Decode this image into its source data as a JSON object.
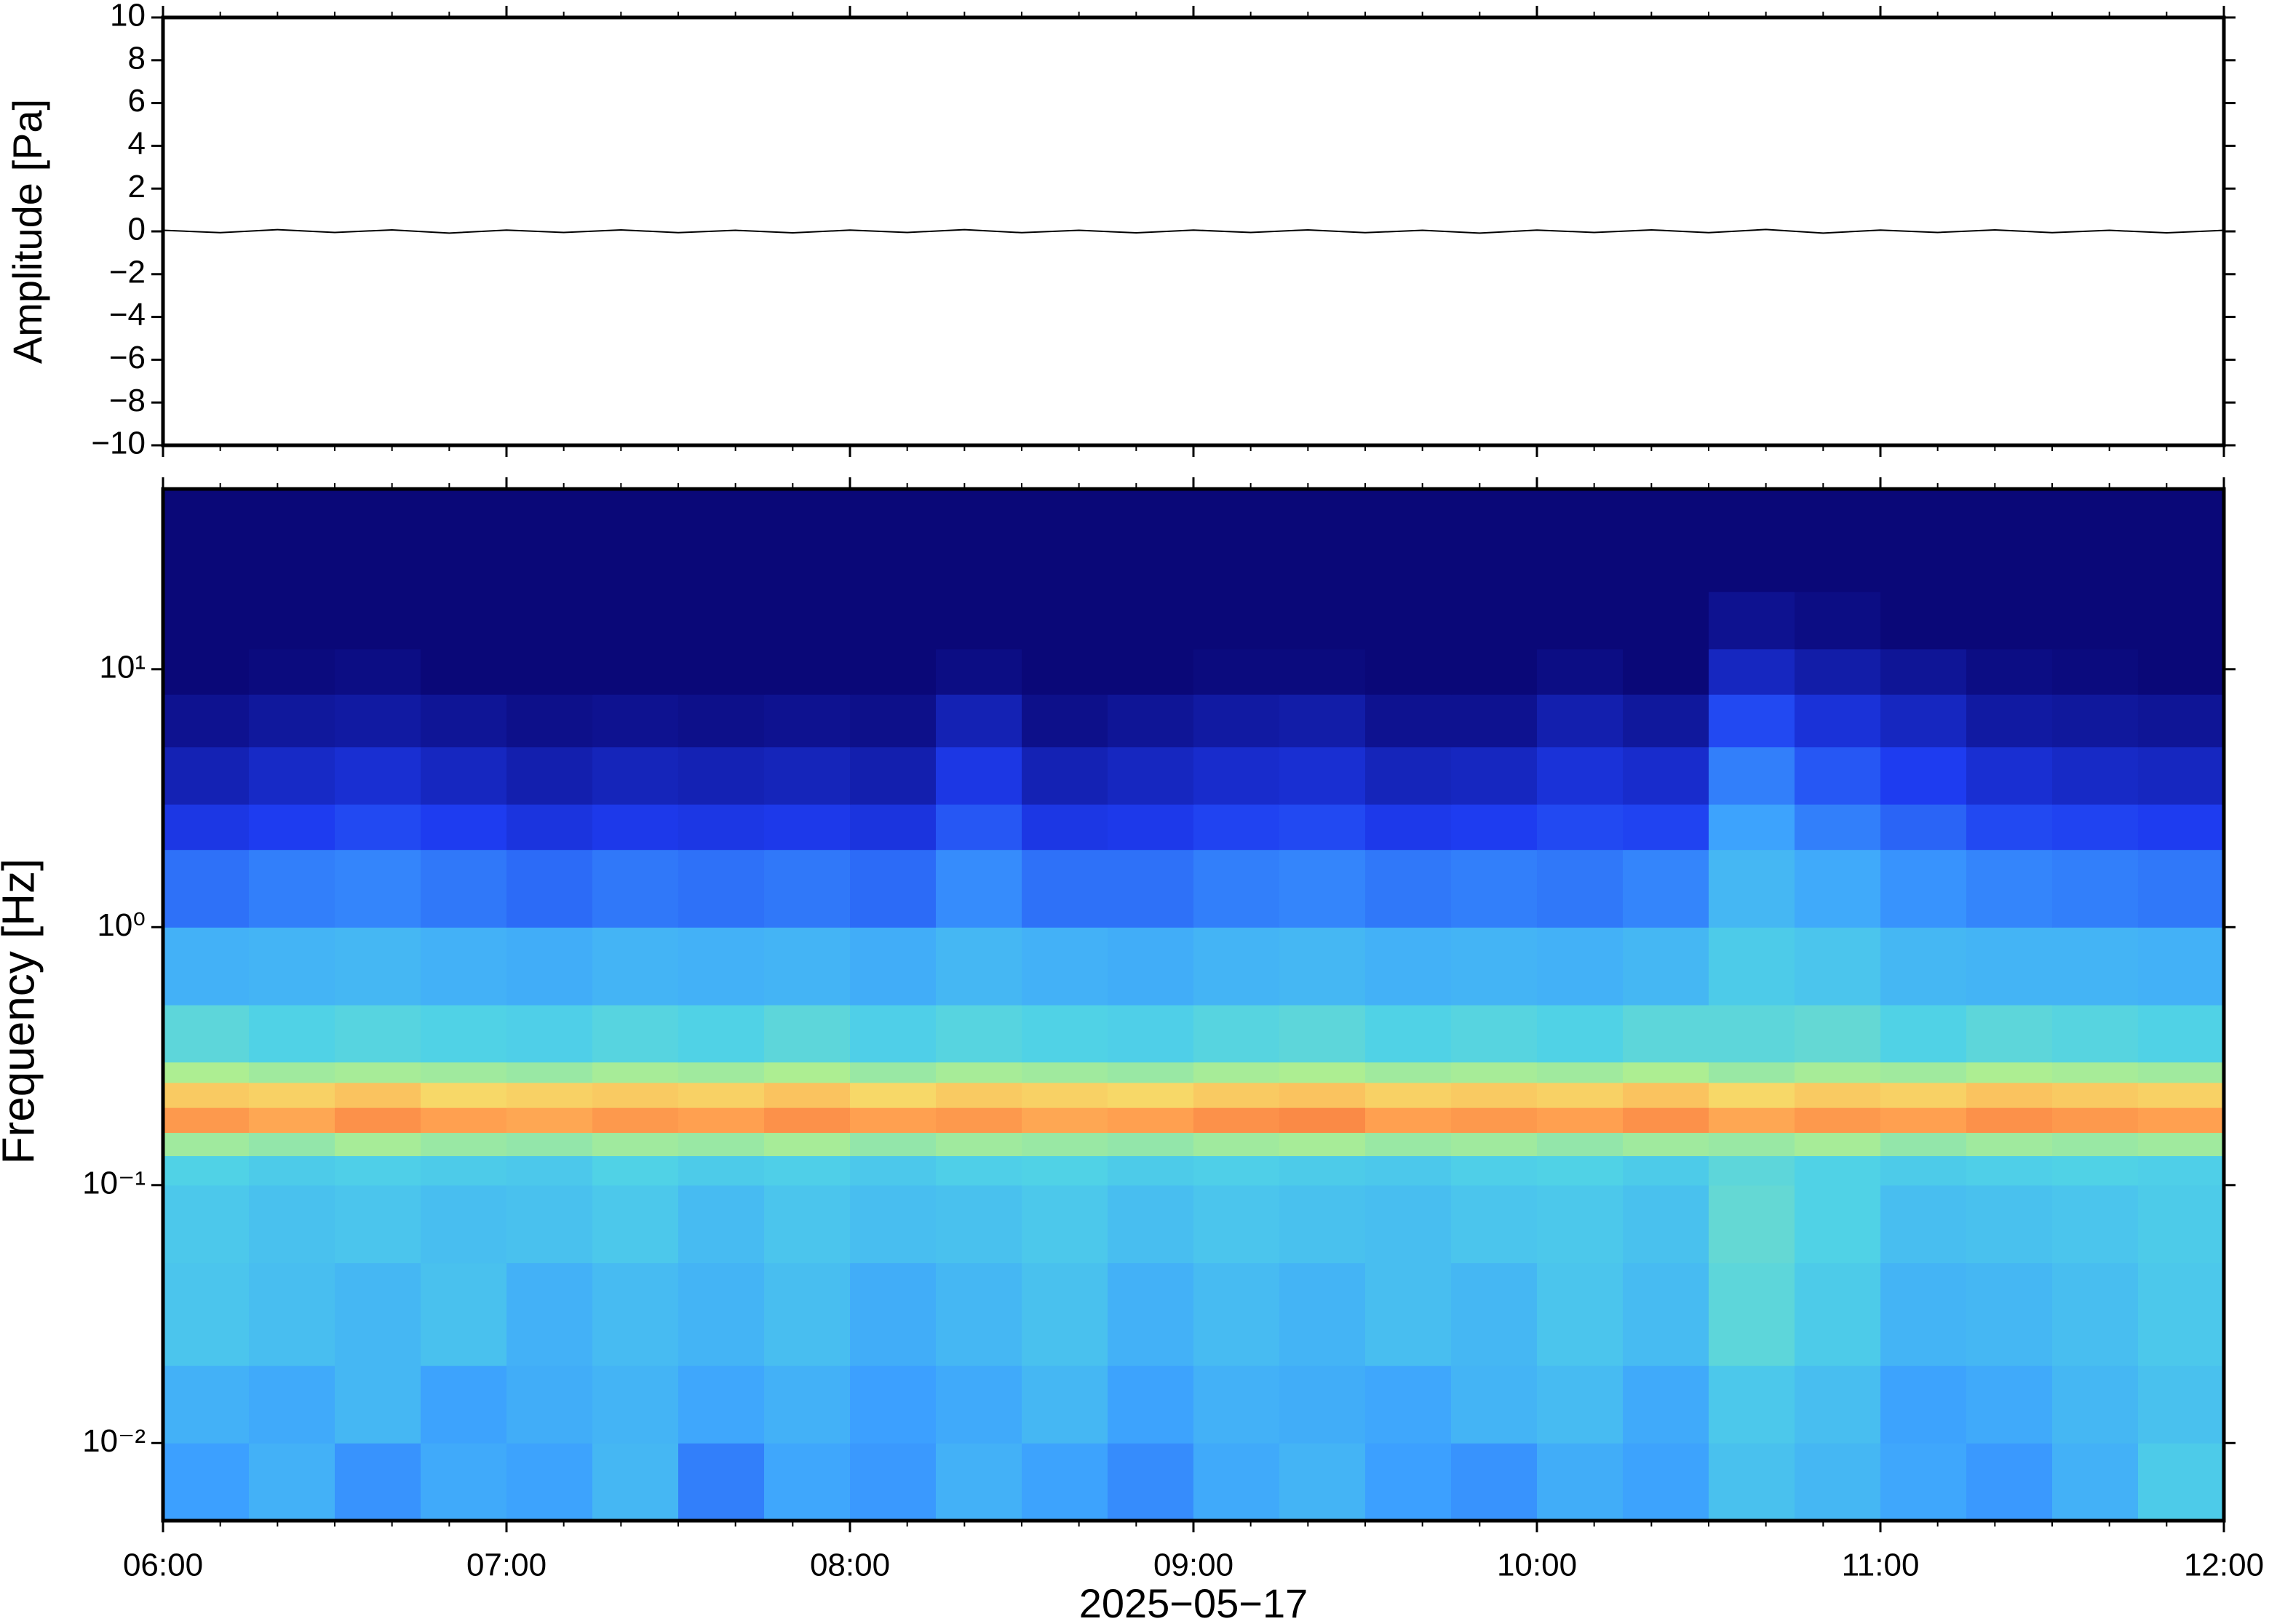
{
  "chart_data": [
    {
      "type": "line",
      "ylabel": "Amplitude [Pa]",
      "xlim": [
        "2025-05-17T06:00",
        "2025-05-17T12:00"
      ],
      "ylim": [
        -10,
        10
      ],
      "yticks": [
        {
          "value": -10,
          "label": "−10"
        },
        {
          "value": -8,
          "label": "−8"
        },
        {
          "value": -6,
          "label": "−6"
        },
        {
          "value": -4,
          "label": "−4"
        },
        {
          "value": -2,
          "label": "−2"
        },
        0,
        2,
        4,
        6,
        8,
        10
      ],
      "series": [
        {
          "color": "#000000",
          "x": [
            "2025-05-17T06:00",
            "2025-05-17T06:10",
            "2025-05-17T06:20",
            "2025-05-17T06:30",
            "2025-05-17T06:40",
            "2025-05-17T06:50",
            "2025-05-17T07:00",
            "2025-05-17T07:10",
            "2025-05-17T07:20",
            "2025-05-17T07:30",
            "2025-05-17T07:40",
            "2025-05-17T07:50",
            "2025-05-17T08:00",
            "2025-05-17T08:10",
            "2025-05-17T08:20",
            "2025-05-17T08:30",
            "2025-05-17T08:40",
            "2025-05-17T08:50",
            "2025-05-17T09:00",
            "2025-05-17T09:10",
            "2025-05-17T09:20",
            "2025-05-17T09:30",
            "2025-05-17T09:40",
            "2025-05-17T09:50",
            "2025-05-17T10:00",
            "2025-05-17T10:10",
            "2025-05-17T10:20",
            "2025-05-17T10:30",
            "2025-05-17T10:40",
            "2025-05-17T10:50",
            "2025-05-17T11:00",
            "2025-05-17T11:10",
            "2025-05-17T11:20",
            "2025-05-17T11:30",
            "2025-05-17T11:40",
            "2025-05-17T11:50",
            "2025-05-17T12:00"
          ],
          "values": [
            0.05,
            -0.06,
            0.08,
            -0.05,
            0.07,
            -0.08,
            0.06,
            -0.05,
            0.07,
            -0.06,
            0.05,
            -0.07,
            0.06,
            -0.05,
            0.08,
            -0.06,
            0.05,
            -0.07,
            0.06,
            -0.05,
            0.07,
            -0.06,
            0.05,
            -0.08,
            0.06,
            -0.05,
            0.07,
            -0.06,
            0.09,
            -0.08,
            0.06,
            -0.05,
            0.07,
            -0.06,
            0.05,
            -0.07,
            0.05
          ]
        }
      ]
    },
    {
      "type": "heatmap",
      "xlabel": "2025−05−17",
      "ylabel": "Frequency [Hz]",
      "xlim": [
        "2025-05-17T06:00",
        "2025-05-17T12:00"
      ],
      "xticks": [
        {
          "value": "2025-05-17T06:00",
          "label": "06:00"
        },
        {
          "value": "2025-05-17T07:00",
          "label": "07:00"
        },
        {
          "value": "2025-05-17T08:00",
          "label": "08:00"
        },
        {
          "value": "2025-05-17T09:00",
          "label": "09:00"
        },
        {
          "value": "2025-05-17T10:00",
          "label": "10:00"
        },
        {
          "value": "2025-05-17T11:00",
          "label": "11:00"
        },
        {
          "value": "2025-05-17T12:00",
          "label": "12:00"
        }
      ],
      "xminorticks": [
        "2025-05-17T06:10",
        "2025-05-17T06:20",
        "2025-05-17T06:30",
        "2025-05-17T06:40",
        "2025-05-17T06:50",
        "2025-05-17T07:10",
        "2025-05-17T07:20",
        "2025-05-17T07:30",
        "2025-05-17T07:40",
        "2025-05-17T07:50",
        "2025-05-17T08:10",
        "2025-05-17T08:20",
        "2025-05-17T08:30",
        "2025-05-17T08:40",
        "2025-05-17T08:50",
        "2025-05-17T09:10",
        "2025-05-17T09:20",
        "2025-05-17T09:30",
        "2025-05-17T09:40",
        "2025-05-17T09:50",
        "2025-05-17T10:10",
        "2025-05-17T10:20",
        "2025-05-17T10:30",
        "2025-05-17T10:40",
        "2025-05-17T10:50",
        "2025-05-17T11:10",
        "2025-05-17T11:20",
        "2025-05-17T11:30",
        "2025-05-17T11:40",
        "2025-05-17T11:50"
      ],
      "ylim": [
        0.005,
        50
      ],
      "log_y": true,
      "yticks": [
        {
          "value": 0.01,
          "label": "10⁻²"
        },
        {
          "value": 0.1,
          "label": "10⁻¹"
        },
        {
          "value": 1,
          "label": "10⁰"
        },
        {
          "value": 10,
          "label": "10¹"
        }
      ],
      "x_edges": [
        "2025-05-17T06:00",
        "2025-05-17T06:15",
        "2025-05-17T06:30",
        "2025-05-17T06:45",
        "2025-05-17T07:00",
        "2025-05-17T07:15",
        "2025-05-17T07:30",
        "2025-05-17T07:45",
        "2025-05-17T08:00",
        "2025-05-17T08:15",
        "2025-05-17T08:30",
        "2025-05-17T08:45",
        "2025-05-17T09:00",
        "2025-05-17T09:15",
        "2025-05-17T09:30",
        "2025-05-17T09:45",
        "2025-05-17T10:00",
        "2025-05-17T10:15",
        "2025-05-17T10:30",
        "2025-05-17T10:45",
        "2025-05-17T11:00",
        "2025-05-17T11:15",
        "2025-05-17T11:30",
        "2025-05-17T11:45",
        "2025-05-17T12:00"
      ],
      "y_edges": [
        0.005,
        0.01,
        0.02,
        0.05,
        0.1,
        0.13,
        0.16,
        0.2,
        0.25,
        0.3,
        0.5,
        1,
        2,
        3,
        5,
        8,
        12,
        20,
        50
      ],
      "colorscale": [
        [
          0,
          "#0a0878"
        ],
        [
          0.2,
          "#1e3cf0"
        ],
        [
          0.35,
          "#3ca0ff"
        ],
        [
          0.5,
          "#50d2e6"
        ],
        [
          0.65,
          "#b4f08c"
        ],
        [
          0.75,
          "#f5e66e"
        ],
        [
          0.85,
          "#ffa050"
        ],
        [
          1,
          "#e83020"
        ]
      ],
      "z": [
        [
          0.35,
          0.4,
          0.33,
          0.38,
          0.36,
          0.42,
          0.3,
          0.37,
          0.34,
          0.4,
          0.36,
          0.32,
          0.38,
          0.41,
          0.35,
          0.33,
          0.39,
          0.36,
          0.45,
          0.42,
          0.37,
          0.34,
          0.4,
          0.48
        ],
        [
          0.4,
          0.38,
          0.42,
          0.36,
          0.39,
          0.41,
          0.37,
          0.4,
          0.35,
          0.38,
          0.42,
          0.36,
          0.4,
          0.39,
          0.37,
          0.41,
          0.43,
          0.38,
          0.47,
          0.44,
          0.36,
          0.38,
          0.42,
          0.45
        ],
        [
          0.46,
          0.44,
          0.42,
          0.45,
          0.4,
          0.43,
          0.41,
          0.44,
          0.39,
          0.42,
          0.45,
          0.4,
          0.43,
          0.41,
          0.44,
          0.42,
          0.46,
          0.43,
          0.52,
          0.48,
          0.41,
          0.42,
          0.44,
          0.47
        ],
        [
          0.47,
          0.45,
          0.46,
          0.44,
          0.45,
          0.47,
          0.43,
          0.46,
          0.44,
          0.45,
          0.47,
          0.44,
          0.46,
          0.45,
          0.44,
          0.46,
          0.47,
          0.45,
          0.53,
          0.5,
          0.44,
          0.45,
          0.46,
          0.48
        ],
        [
          0.5,
          0.48,
          0.49,
          0.48,
          0.47,
          0.5,
          0.48,
          0.49,
          0.47,
          0.49,
          0.5,
          0.48,
          0.49,
          0.48,
          0.47,
          0.49,
          0.5,
          0.48,
          0.52,
          0.5,
          0.48,
          0.49,
          0.5,
          0.49
        ],
        [
          0.62,
          0.6,
          0.63,
          0.61,
          0.6,
          0.62,
          0.61,
          0.63,
          0.6,
          0.62,
          0.61,
          0.6,
          0.62,
          0.63,
          0.61,
          0.62,
          0.6,
          0.62,
          0.61,
          0.63,
          0.6,
          0.62,
          0.61,
          0.62
        ],
        [
          0.86,
          0.84,
          0.87,
          0.85,
          0.84,
          0.86,
          0.85,
          0.87,
          0.85,
          0.86,
          0.84,
          0.85,
          0.87,
          0.88,
          0.85,
          0.86,
          0.85,
          0.87,
          0.84,
          0.86,
          0.85,
          0.87,
          0.86,
          0.85
        ],
        [
          0.79,
          0.78,
          0.8,
          0.77,
          0.78,
          0.79,
          0.78,
          0.8,
          0.77,
          0.79,
          0.78,
          0.77,
          0.79,
          0.8,
          0.78,
          0.79,
          0.78,
          0.8,
          0.77,
          0.79,
          0.78,
          0.8,
          0.79,
          0.78
        ],
        [
          0.64,
          0.62,
          0.63,
          0.62,
          0.61,
          0.63,
          0.62,
          0.64,
          0.61,
          0.63,
          0.62,
          0.61,
          0.63,
          0.64,
          0.62,
          0.63,
          0.62,
          0.64,
          0.61,
          0.63,
          0.62,
          0.64,
          0.63,
          0.62
        ],
        [
          0.52,
          0.5,
          0.51,
          0.5,
          0.49,
          0.51,
          0.5,
          0.52,
          0.49,
          0.51,
          0.5,
          0.49,
          0.51,
          0.52,
          0.5,
          0.51,
          0.5,
          0.52,
          0.52,
          0.53,
          0.5,
          0.52,
          0.51,
          0.5
        ],
        [
          0.4,
          0.41,
          0.42,
          0.4,
          0.39,
          0.41,
          0.4,
          0.41,
          0.39,
          0.42,
          0.4,
          0.39,
          0.41,
          0.42,
          0.4,
          0.41,
          0.4,
          0.42,
          0.48,
          0.46,
          0.42,
          0.41,
          0.41,
          0.4
        ],
        [
          0.28,
          0.3,
          0.31,
          0.29,
          0.27,
          0.29,
          0.28,
          0.29,
          0.27,
          0.32,
          0.28,
          0.28,
          0.3,
          0.31,
          0.29,
          0.3,
          0.29,
          0.31,
          0.42,
          0.38,
          0.33,
          0.31,
          0.3,
          0.29
        ],
        [
          0.18,
          0.2,
          0.22,
          0.2,
          0.17,
          0.19,
          0.18,
          0.19,
          0.17,
          0.24,
          0.18,
          0.19,
          0.21,
          0.22,
          0.19,
          0.2,
          0.22,
          0.21,
          0.36,
          0.3,
          0.26,
          0.22,
          0.21,
          0.2
        ],
        [
          0.1,
          0.13,
          0.15,
          0.12,
          0.09,
          0.11,
          0.1,
          0.11,
          0.09,
          0.18,
          0.1,
          0.12,
          0.14,
          0.15,
          0.11,
          0.12,
          0.16,
          0.14,
          0.3,
          0.24,
          0.2,
          0.15,
          0.13,
          0.12
        ],
        [
          0.04,
          0.06,
          0.07,
          0.05,
          0.03,
          0.04,
          0.03,
          0.04,
          0.03,
          0.1,
          0.03,
          0.05,
          0.07,
          0.08,
          0.04,
          0.04,
          0.09,
          0.06,
          0.22,
          0.16,
          0.12,
          0.07,
          0.06,
          0.05
        ],
        [
          0,
          0.01,
          0.02,
          0,
          0,
          0,
          0,
          0,
          0,
          0.02,
          0,
          0,
          0.01,
          0.01,
          0,
          0,
          0.02,
          0,
          0.12,
          0.08,
          0.05,
          0.02,
          0.01,
          0
        ],
        [
          0,
          0,
          0,
          0,
          0,
          0,
          0,
          0,
          0,
          0,
          0,
          0,
          0,
          0,
          0,
          0,
          0,
          0,
          0.04,
          0.02,
          0,
          0,
          0,
          0
        ],
        [
          0,
          0,
          0,
          0,
          0,
          0,
          0,
          0,
          0,
          0,
          0,
          0,
          0,
          0,
          0,
          0,
          0,
          0,
          0,
          0,
          0,
          0,
          0,
          0
        ]
      ]
    }
  ]
}
